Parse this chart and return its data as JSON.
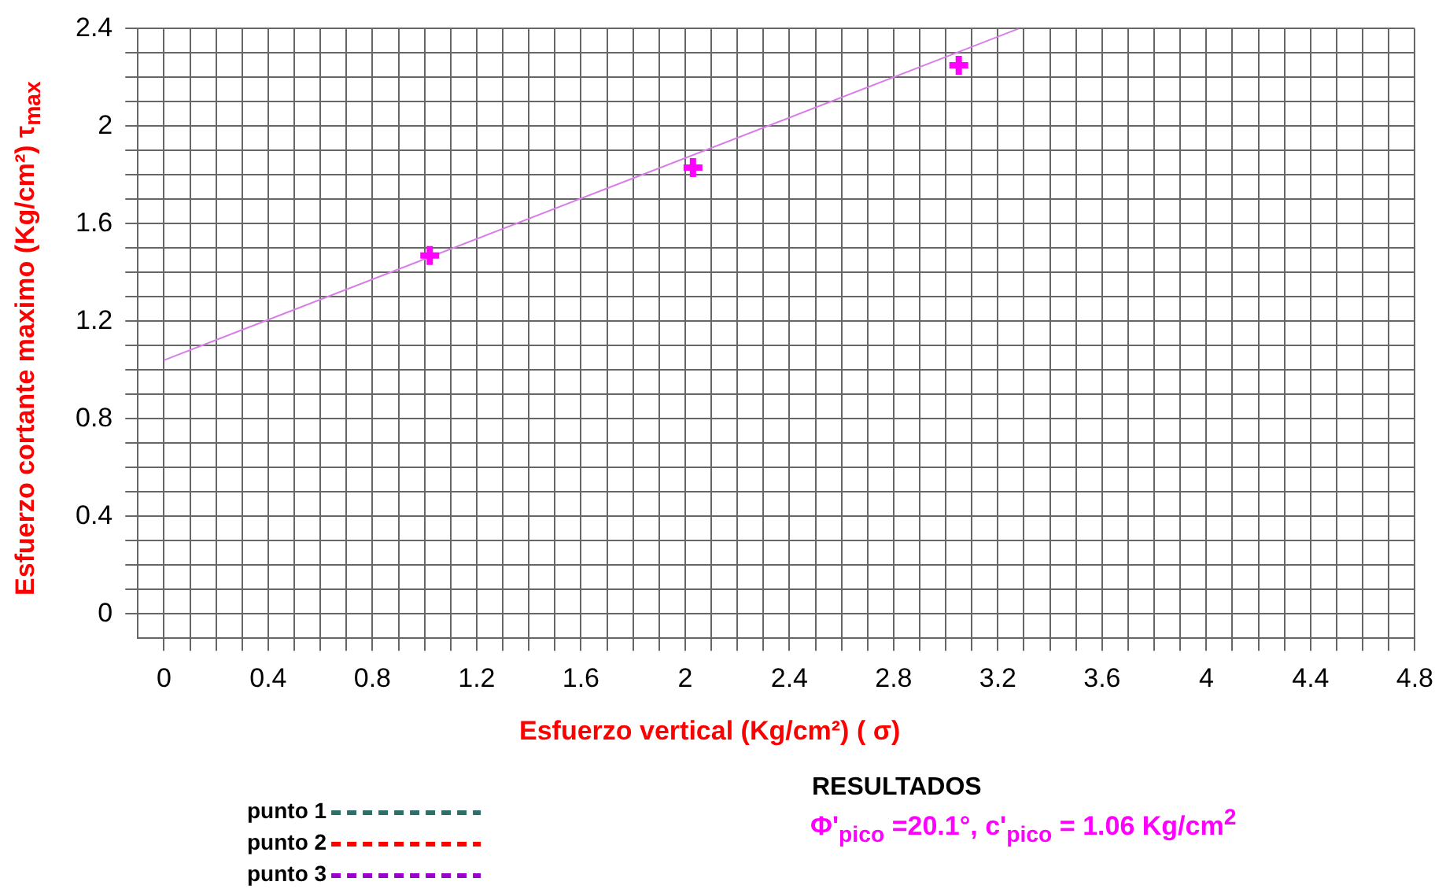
{
  "chart_data": {
    "type": "scatter",
    "xlabel": "Esfuerzo vertical (Kg/cm²) ( σ)",
    "ylabel": "Esfuerzo cortante maximo (Kg/cm²) τ$_{max}$",
    "xlim": [
      -0.1,
      4.8
    ],
    "ylim": [
      -0.1,
      2.4
    ],
    "xticks": [
      0,
      {
        "value": 0.1,
        "label": null
      },
      {
        "value": 0.2,
        "label": null
      },
      {
        "value": 0.3,
        "label": null
      },
      0.4,
      {
        "value": 0.5,
        "label": null
      },
      {
        "value": 0.6,
        "label": null
      },
      {
        "value": 0.7,
        "label": null
      },
      0.8,
      {
        "value": 0.9,
        "label": null
      },
      {
        "value": 1.0,
        "label": null
      },
      {
        "value": 1.1,
        "label": null
      },
      1.2,
      {
        "value": 1.3,
        "label": null
      },
      {
        "value": 1.4,
        "label": null
      },
      {
        "value": 1.5,
        "label": null
      },
      1.6,
      {
        "value": 1.7,
        "label": null
      },
      {
        "value": 1.8,
        "label": null
      },
      {
        "value": 1.9,
        "label": null
      },
      2,
      {
        "value": 2.1,
        "label": null
      },
      {
        "value": 2.2,
        "label": null
      },
      {
        "value": 2.3,
        "label": null
      },
      2.4,
      {
        "value": 2.5,
        "label": null
      },
      {
        "value": 2.6,
        "label": null
      },
      {
        "value": 2.7,
        "label": null
      },
      2.8,
      {
        "value": 2.9,
        "label": null
      },
      {
        "value": 3.0,
        "label": null
      },
      {
        "value": 3.1,
        "label": null
      },
      3.2,
      {
        "value": 3.3,
        "label": null
      },
      {
        "value": 3.4,
        "label": null
      },
      {
        "value": 3.5,
        "label": null
      },
      3.6,
      {
        "value": 3.7,
        "label": null
      },
      {
        "value": 3.8,
        "label": null
      },
      {
        "value": 3.9,
        "label": null
      },
      4,
      {
        "value": 4.1,
        "label": null
      },
      {
        "value": 4.2,
        "label": null
      },
      {
        "value": 4.3,
        "label": null
      },
      4.4,
      {
        "value": 4.5,
        "label": null
      },
      {
        "value": 4.6,
        "label": null
      },
      {
        "value": 4.7,
        "label": null
      },
      4.8
    ],
    "yticks": [
      0,
      {
        "value": 0.1,
        "label": null
      },
      {
        "value": 0.2,
        "label": null
      },
      {
        "value": 0.3,
        "label": null
      },
      0.4,
      {
        "value": 0.5,
        "label": null
      },
      {
        "value": 0.6,
        "label": null
      },
      {
        "value": 0.7,
        "label": null
      },
      0.8,
      {
        "value": 0.9,
        "label": null
      },
      {
        "value": 1.0,
        "label": null
      },
      {
        "value": 1.1,
        "label": null
      },
      1.2,
      {
        "value": 1.3,
        "label": null
      },
      {
        "value": 1.4,
        "label": null
      },
      {
        "value": 1.5,
        "label": null
      },
      1.6,
      {
        "value": 1.7,
        "label": null
      },
      {
        "value": 1.8,
        "label": null
      },
      {
        "value": 1.9,
        "label": null
      },
      2,
      {
        "value": 2.1,
        "label": null
      },
      {
        "value": 2.2,
        "label": null
      },
      {
        "value": 2.3,
        "label": null
      },
      2.4
    ],
    "grid": true,
    "legend": "bottom left",
    "series": [
      {
        "color": "#ff00ff",
        "marker": "cross",
        "x": [
          1.02,
          2.03,
          3.05
        ],
        "values": [
          1.47,
          1.83,
          2.25
        ]
      },
      {
        "type": "line",
        "color": "#d87ee8",
        "marker": "none",
        "line_style": "solid",
        "x": [
          0,
          3.28
        ],
        "values": [
          1.04,
          2.4
        ]
      },
      {
        "type": "line",
        "name": "punto 1",
        "color": "#2f6f6a",
        "line_style": "dashed",
        "marker": "none"
      },
      {
        "type": "line",
        "name": "punto 2",
        "color": "#ff0000",
        "line_style": "dashed",
        "marker": "none"
      },
      {
        "type": "line",
        "name": "punto 3",
        "color": "#9900cc",
        "line_style": "dashed",
        "marker": "none"
      }
    ],
    "annotations": [
      "RESULTADOS",
      "Φ'$_{pico}$ =20.1°, c'$_{pico}$ = 1.06 Kg/cm$^{2}$"
    ]
  }
}
